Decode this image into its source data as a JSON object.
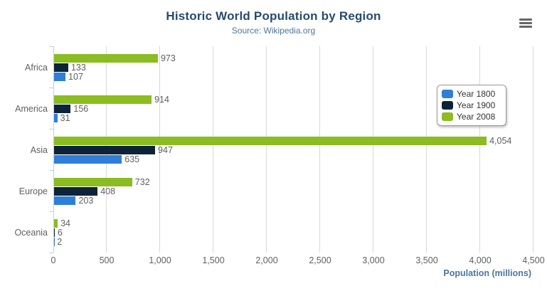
{
  "header": {
    "title": "Historic World Population by Region",
    "subtitle": "Source: Wikipedia.org"
  },
  "export_menu": {
    "icon": "hamburger-menu-icon",
    "tooltip_label": ""
  },
  "colors": {
    "title": "#274b6d",
    "subtitle": "#4d759e",
    "axis_title": "#4d759e",
    "labels": "#606060",
    "data_labels": "#606060",
    "grid_line": "#d8d8d8",
    "axis_line": "#c0d0e0",
    "legend_border": "#999999",
    "legend_text": "#333333",
    "hamburger": "#666666",
    "background": "#ffffff"
  },
  "chart_data": {
    "type": "bar",
    "title": "Historic World Population by Region",
    "subtitle": "Source: Wikipedia.org",
    "categories": [
      "Africa",
      "America",
      "Asia",
      "Europe",
      "Oceania"
    ],
    "series": [
      {
        "name": "Year 1800",
        "color": "#2f7ed8",
        "values": [
          107,
          31,
          635,
          203,
          2
        ]
      },
      {
        "name": "Year 1900",
        "color": "#0d233a",
        "values": [
          133,
          156,
          947,
          408,
          6
        ]
      },
      {
        "name": "Year 2008",
        "color": "#8bbc21",
        "values": [
          973,
          914,
          4054,
          732,
          34
        ]
      }
    ],
    "bar_order_top_to_bottom": [
      "Year 2008",
      "Year 1900",
      "Year 1800"
    ],
    "data_labels_visible": true,
    "xlabel": "Population (millions)",
    "ylabel": "",
    "xlim": [
      0,
      4500
    ],
    "x_ticks": [
      0,
      500,
      1000,
      1500,
      2000,
      2500,
      3000,
      3500,
      4000,
      4500
    ],
    "x_tick_labels": [
      "0",
      "500",
      "1,000",
      "1,500",
      "2,000",
      "2,500",
      "3,000",
      "3,500",
      "4,000",
      "4,500"
    ],
    "grid": true,
    "legend_position": "right"
  }
}
